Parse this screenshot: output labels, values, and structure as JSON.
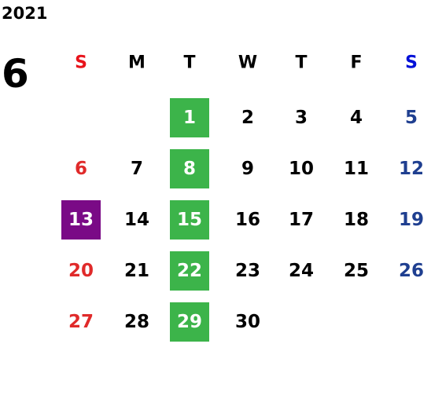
{
  "header": {
    "year": "2021",
    "month": "6"
  },
  "weekdays": [
    "S",
    "M",
    "T",
    "W",
    "T",
    "F",
    "S"
  ],
  "weeks": [
    [
      null,
      null,
      1,
      2,
      3,
      4,
      5
    ],
    [
      6,
      7,
      8,
      9,
      10,
      11,
      12
    ],
    [
      13,
      14,
      15,
      16,
      17,
      18,
      19
    ],
    [
      20,
      21,
      22,
      23,
      24,
      25,
      26
    ],
    [
      27,
      28,
      29,
      30,
      null,
      null,
      null
    ]
  ]
}
